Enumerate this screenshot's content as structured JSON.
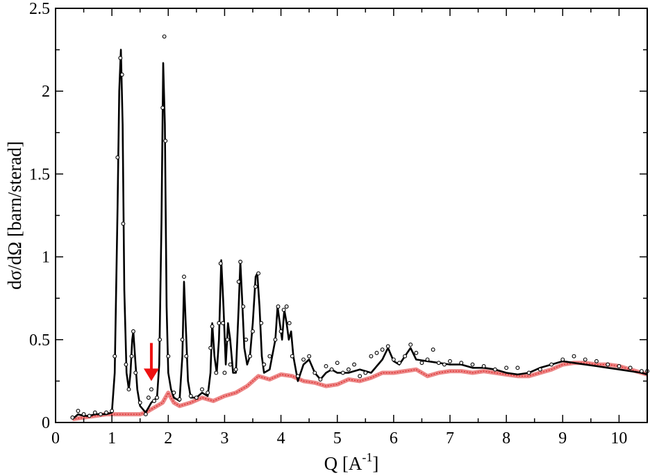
{
  "chart_data": {
    "type": "line",
    "title": "",
    "xlabel": "Q [A",
    "xlabel_superscript": "-1",
    "xlabel_close": "]",
    "ylabel": "dσ/dΩ [barn/sterad]",
    "xlim": [
      0,
      10.5
    ],
    "ylim": [
      0,
      2.5
    ],
    "x_ticks": [
      0,
      1,
      2,
      3,
      4,
      5,
      6,
      7,
      8,
      9,
      10
    ],
    "x_tick_labels": [
      "0",
      "1",
      "2",
      "3",
      "4",
      "5",
      "6",
      "7",
      "8",
      "9",
      "10"
    ],
    "y_ticks": [
      0,
      0.5,
      1,
      1.5,
      2,
      2.5
    ],
    "y_tick_labels": [
      "0",
      "0.5",
      "1",
      "1.5",
      "2",
      "2.5"
    ],
    "grid": false,
    "legend": "none",
    "colors": {
      "measured": "#000000",
      "fit": "#000000",
      "background": "#dd2222",
      "arrow": "#ee1111"
    },
    "arrow": {
      "x": 1.7,
      "y_top": 0.48,
      "y_bottom": 0.25
    },
    "series": [
      {
        "style": "open-circles",
        "x": [
          0.3,
          0.4,
          0.5,
          0.6,
          0.7,
          0.8,
          0.9,
          1.0,
          1.05,
          1.1,
          1.15,
          1.18,
          1.2,
          1.25,
          1.3,
          1.35,
          1.38,
          1.42,
          1.5,
          1.6,
          1.65,
          1.7,
          1.75,
          1.8,
          1.85,
          1.9,
          1.93,
          1.95,
          2.0,
          2.1,
          2.2,
          2.25,
          2.28,
          2.32,
          2.4,
          2.5,
          2.6,
          2.7,
          2.75,
          2.78,
          2.85,
          2.9,
          2.93,
          2.97,
          3.0,
          3.05,
          3.1,
          3.2,
          3.25,
          3.28,
          3.33,
          3.38,
          3.45,
          3.5,
          3.55,
          3.6,
          3.65,
          3.7,
          3.8,
          3.9,
          3.95,
          4.0,
          4.05,
          4.1,
          4.15,
          4.2,
          4.3,
          4.4,
          4.5,
          4.6,
          4.7,
          4.8,
          4.9,
          5.0,
          5.1,
          5.2,
          5.3,
          5.4,
          5.5,
          5.6,
          5.7,
          5.8,
          5.9,
          6.0,
          6.1,
          6.2,
          6.3,
          6.4,
          6.5,
          6.6,
          6.7,
          6.8,
          6.9,
          7.0,
          7.2,
          7.4,
          7.6,
          7.8,
          8.0,
          8.2,
          8.4,
          8.6,
          8.8,
          9.0,
          9.2,
          9.4,
          9.6,
          9.8,
          10.0,
          10.2,
          10.4,
          10.5
        ],
        "y": [
          0.03,
          0.07,
          0.05,
          0.04,
          0.06,
          0.05,
          0.06,
          0.07,
          0.4,
          1.6,
          2.2,
          2.1,
          1.2,
          0.35,
          0.2,
          0.4,
          0.55,
          0.3,
          0.12,
          0.05,
          0.15,
          0.2,
          0.13,
          0.15,
          0.5,
          1.9,
          2.33,
          1.7,
          0.4,
          0.18,
          0.14,
          0.5,
          0.88,
          0.4,
          0.16,
          0.15,
          0.2,
          0.18,
          0.45,
          0.58,
          0.3,
          0.6,
          0.96,
          0.6,
          0.3,
          0.5,
          0.35,
          0.32,
          0.85,
          0.97,
          0.7,
          0.5,
          0.4,
          0.55,
          0.82,
          0.9,
          0.6,
          0.35,
          0.4,
          0.5,
          0.7,
          0.55,
          0.68,
          0.7,
          0.6,
          0.4,
          0.28,
          0.38,
          0.4,
          0.3,
          0.26,
          0.34,
          0.32,
          0.36,
          0.3,
          0.32,
          0.35,
          0.28,
          0.3,
          0.4,
          0.42,
          0.44,
          0.46,
          0.38,
          0.36,
          0.4,
          0.47,
          0.42,
          0.36,
          0.38,
          0.44,
          0.36,
          0.35,
          0.37,
          0.36,
          0.35,
          0.34,
          0.32,
          0.33,
          0.33,
          0.3,
          0.32,
          0.35,
          0.38,
          0.4,
          0.38,
          0.37,
          0.35,
          0.34,
          0.33,
          0.31,
          0.31
        ]
      },
      {
        "style": "solid-line",
        "x": [
          0.3,
          0.4,
          0.5,
          0.6,
          0.7,
          0.8,
          0.9,
          1.0,
          1.05,
          1.1,
          1.13,
          1.16,
          1.19,
          1.22,
          1.26,
          1.3,
          1.33,
          1.36,
          1.38,
          1.41,
          1.45,
          1.5,
          1.6,
          1.7,
          1.8,
          1.84,
          1.88,
          1.91,
          1.94,
          1.97,
          2.0,
          2.05,
          2.1,
          2.2,
          2.25,
          2.28,
          2.31,
          2.35,
          2.4,
          2.5,
          2.6,
          2.7,
          2.75,
          2.78,
          2.82,
          2.86,
          2.9,
          2.94,
          2.98,
          3.02,
          3.06,
          3.1,
          3.15,
          3.2,
          3.25,
          3.28,
          3.31,
          3.35,
          3.4,
          3.45,
          3.5,
          3.55,
          3.58,
          3.62,
          3.66,
          3.7,
          3.8,
          3.9,
          3.94,
          3.98,
          4.02,
          4.06,
          4.1,
          4.14,
          4.18,
          4.22,
          4.3,
          4.4,
          4.5,
          4.6,
          4.7,
          4.8,
          4.9,
          5.0,
          5.2,
          5.4,
          5.6,
          5.8,
          5.9,
          6.0,
          6.1,
          6.2,
          6.3,
          6.4,
          6.6,
          6.8,
          7.0,
          7.2,
          7.4,
          7.6,
          7.8,
          8.0,
          8.2,
          8.4,
          8.6,
          8.8,
          9.0,
          9.2,
          9.4,
          9.6,
          9.8,
          10.0,
          10.2,
          10.4,
          10.5
        ],
        "y": [
          0.02,
          0.05,
          0.04,
          0.04,
          0.05,
          0.05,
          0.05,
          0.06,
          0.3,
          1.3,
          2.0,
          2.25,
          1.8,
          0.8,
          0.3,
          0.2,
          0.3,
          0.5,
          0.55,
          0.4,
          0.2,
          0.1,
          0.06,
          0.12,
          0.15,
          0.35,
          1.2,
          2.17,
          1.8,
          0.7,
          0.3,
          0.2,
          0.15,
          0.13,
          0.4,
          0.85,
          0.6,
          0.25,
          0.15,
          0.15,
          0.18,
          0.16,
          0.3,
          0.6,
          0.4,
          0.3,
          0.5,
          0.98,
          0.7,
          0.35,
          0.6,
          0.5,
          0.3,
          0.3,
          0.7,
          0.97,
          0.75,
          0.45,
          0.35,
          0.4,
          0.6,
          0.88,
          0.9,
          0.7,
          0.4,
          0.3,
          0.32,
          0.5,
          0.7,
          0.6,
          0.5,
          0.68,
          0.6,
          0.5,
          0.55,
          0.4,
          0.25,
          0.35,
          0.38,
          0.3,
          0.26,
          0.3,
          0.32,
          0.3,
          0.3,
          0.32,
          0.3,
          0.38,
          0.45,
          0.37,
          0.35,
          0.4,
          0.45,
          0.38,
          0.37,
          0.36,
          0.35,
          0.35,
          0.33,
          0.33,
          0.32,
          0.3,
          0.29,
          0.3,
          0.33,
          0.35,
          0.37,
          0.36,
          0.35,
          0.34,
          0.33,
          0.32,
          0.31,
          0.3,
          0.29
        ]
      },
      {
        "style": "red-band",
        "x": [
          0.3,
          0.5,
          0.7,
          0.9,
          1.1,
          1.3,
          1.5,
          1.6,
          1.7,
          1.8,
          1.9,
          2.0,
          2.1,
          2.2,
          2.4,
          2.6,
          2.8,
          3.0,
          3.2,
          3.4,
          3.6,
          3.8,
          4.0,
          4.2,
          4.4,
          4.6,
          4.8,
          5.0,
          5.2,
          5.4,
          5.6,
          5.8,
          6.0,
          6.2,
          6.4,
          6.6,
          6.8,
          7.0,
          7.2,
          7.4,
          7.6,
          7.8,
          8.0,
          8.2,
          8.4,
          8.6,
          8.8,
          9.0,
          9.2,
          9.4,
          9.6,
          9.8,
          10.0,
          10.2,
          10.4,
          10.5
        ],
        "y": [
          0.02,
          0.03,
          0.04,
          0.05,
          0.05,
          0.05,
          0.05,
          0.06,
          0.08,
          0.1,
          0.12,
          0.18,
          0.12,
          0.1,
          0.12,
          0.15,
          0.13,
          0.16,
          0.18,
          0.22,
          0.28,
          0.26,
          0.29,
          0.28,
          0.25,
          0.24,
          0.22,
          0.23,
          0.26,
          0.25,
          0.27,
          0.3,
          0.3,
          0.31,
          0.32,
          0.28,
          0.3,
          0.31,
          0.31,
          0.3,
          0.31,
          0.3,
          0.29,
          0.28,
          0.28,
          0.3,
          0.32,
          0.35,
          0.36,
          0.36,
          0.35,
          0.35,
          0.34,
          0.32,
          0.3,
          0.29
        ]
      }
    ]
  }
}
